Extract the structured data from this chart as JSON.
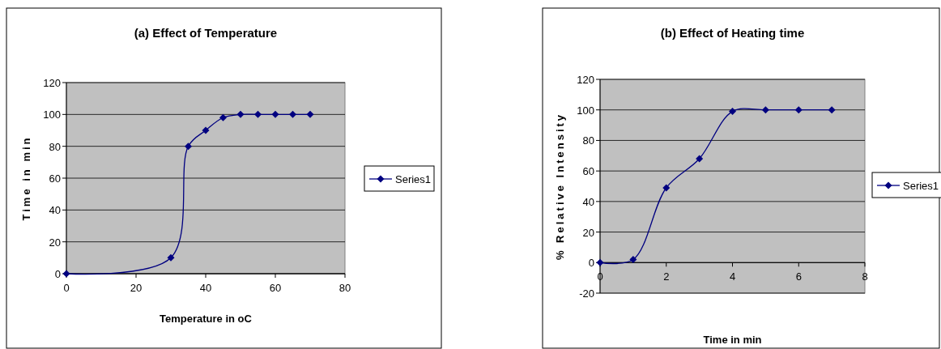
{
  "chart_data": [
    {
      "type": "line",
      "title": "(a)  Effect of Temperature",
      "xlabel": "Temperature in oC",
      "ylabel": "Time in min",
      "x": [
        0,
        30,
        35,
        40,
        45,
        50,
        55,
        60,
        65,
        70
      ],
      "series": [
        {
          "name": "Series1",
          "color": "#000080",
          "values": [
            0,
            10,
            80,
            90,
            98,
            100,
            100,
            100,
            100,
            100
          ]
        }
      ],
      "xlim": [
        0,
        80
      ],
      "xticks": [
        0,
        20,
        40,
        60,
        80
      ],
      "ylim": [
        0,
        120
      ],
      "yticks": [
        0,
        20,
        40,
        60,
        80,
        100,
        120
      ],
      "grid": "y",
      "legend": "right",
      "marker": "diamond",
      "line_style": "solid"
    },
    {
      "type": "line",
      "title": "(b) Effect of Heating time",
      "xlabel": "Time in min",
      "ylabel": "% Relative Intensity",
      "x": [
        0,
        1,
        2,
        3,
        4,
        5,
        6,
        7
      ],
      "series": [
        {
          "name": "Series1",
          "color": "#000080",
          "values": [
            0,
            2,
            49,
            68,
            99,
            100,
            100,
            100
          ]
        }
      ],
      "xlim": [
        0,
        8
      ],
      "xticks": [
        0,
        2,
        4,
        6,
        8
      ],
      "ylim": [
        -20,
        120
      ],
      "yticks": [
        -20,
        0,
        20,
        40,
        60,
        80,
        100,
        120
      ],
      "grid": "y",
      "legend": "right",
      "marker": "diamond",
      "line_style": "solid"
    }
  ]
}
